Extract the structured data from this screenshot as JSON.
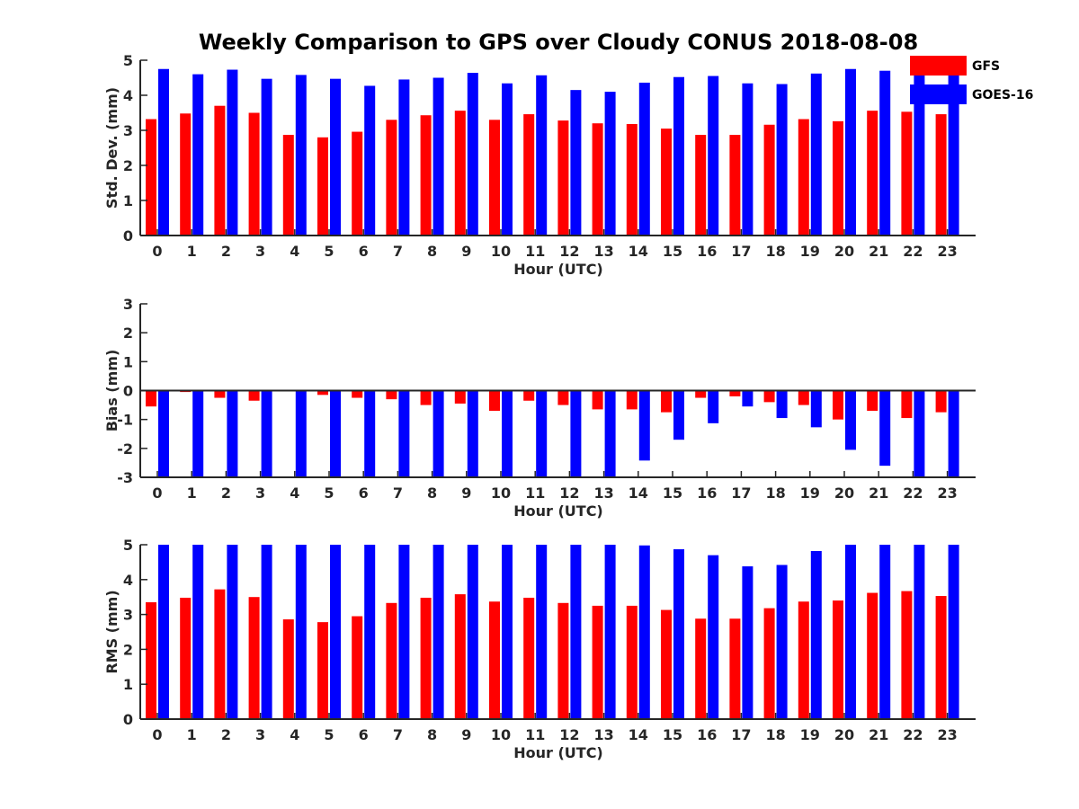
{
  "title": "Weekly Comparison to GPS over Cloudy CONUS 2018-08-08",
  "colors": {
    "GFS": "#ff0000",
    "GOES-16": "#0000ff",
    "axis": "#262626"
  },
  "legend": {
    "placement": "top-right",
    "entries": [
      "GFS",
      "GOES-16"
    ]
  },
  "chart_data": [
    {
      "type": "bar",
      "categories": [
        "0",
        "1",
        "2",
        "3",
        "4",
        "5",
        "6",
        "7",
        "8",
        "9",
        "10",
        "11",
        "12",
        "13",
        "14",
        "15",
        "16",
        "17",
        "18",
        "19",
        "20",
        "21",
        "22",
        "23"
      ],
      "xlabel": "Hour (UTC)",
      "ylabel": "Std. Dev. (mm)",
      "ylim": [
        0,
        5
      ],
      "yticks": [
        "0",
        "1",
        "2",
        "3",
        "4",
        "5"
      ],
      "series": [
        {
          "name": "GFS",
          "values": [
            3.32,
            3.48,
            3.7,
            3.5,
            2.87,
            2.8,
            2.96,
            3.3,
            3.43,
            3.56,
            3.3,
            3.46,
            3.28,
            3.2,
            3.18,
            3.05,
            2.87,
            2.87,
            3.16,
            3.32,
            3.26,
            3.56,
            3.53,
            3.46
          ]
        },
        {
          "name": "GOES-16",
          "values": [
            4.75,
            4.6,
            4.73,
            4.47,
            4.58,
            4.47,
            4.27,
            4.45,
            4.5,
            4.64,
            4.34,
            4.57,
            4.15,
            4.1,
            4.36,
            4.52,
            4.55,
            4.34,
            4.32,
            4.62,
            4.75,
            4.7,
            4.65,
            4.62
          ]
        }
      ]
    },
    {
      "type": "bar",
      "categories": [
        "0",
        "1",
        "2",
        "3",
        "4",
        "5",
        "6",
        "7",
        "8",
        "9",
        "10",
        "11",
        "12",
        "13",
        "14",
        "15",
        "16",
        "17",
        "18",
        "19",
        "20",
        "21",
        "22",
        "23"
      ],
      "xlabel": "Hour (UTC)",
      "ylabel": "Bias (mm)",
      "ylim": [
        -3,
        3
      ],
      "yticks": [
        "-3",
        "-2",
        "-1",
        "0",
        "1",
        "2",
        "3"
      ],
      "series": [
        {
          "name": "GFS",
          "values": [
            -0.55,
            -0.05,
            -0.25,
            -0.35,
            0.02,
            -0.15,
            -0.25,
            -0.3,
            -0.5,
            -0.45,
            -0.7,
            -0.35,
            -0.5,
            -0.65,
            -0.65,
            -0.75,
            -0.25,
            -0.2,
            -0.4,
            -0.5,
            -1.0,
            -0.7,
            -0.95,
            -0.75
          ]
        },
        {
          "name": "GOES-16",
          "values": [
            -3.0,
            -3.0,
            -3.0,
            -3.0,
            -3.0,
            -3.0,
            -3.0,
            -3.0,
            -3.0,
            -3.0,
            -3.0,
            -3.0,
            -3.0,
            -3.0,
            -2.42,
            -1.7,
            -1.13,
            -0.55,
            -0.95,
            -1.27,
            -2.05,
            -2.6,
            -3.0,
            -3.0
          ]
        }
      ]
    },
    {
      "type": "bar",
      "categories": [
        "0",
        "1",
        "2",
        "3",
        "4",
        "5",
        "6",
        "7",
        "8",
        "9",
        "10",
        "11",
        "12",
        "13",
        "14",
        "15",
        "16",
        "17",
        "18",
        "19",
        "20",
        "21",
        "22",
        "23"
      ],
      "xlabel": "Hour (UTC)",
      "ylabel": "RMS (mm)",
      "ylim": [
        0,
        5
      ],
      "yticks": [
        "0",
        "1",
        "2",
        "3",
        "4",
        "5"
      ],
      "series": [
        {
          "name": "GFS",
          "values": [
            3.35,
            3.48,
            3.72,
            3.5,
            2.86,
            2.78,
            2.95,
            3.33,
            3.48,
            3.58,
            3.37,
            3.48,
            3.33,
            3.25,
            3.25,
            3.13,
            2.88,
            2.88,
            3.18,
            3.37,
            3.4,
            3.62,
            3.67,
            3.53
          ]
        },
        {
          "name": "GOES-16",
          "values": [
            5,
            5,
            5,
            5,
            5,
            5,
            5,
            5,
            5,
            5,
            5,
            5,
            5,
            5,
            4.98,
            4.87,
            4.7,
            4.38,
            4.42,
            4.82,
            5,
            5,
            5,
            5
          ]
        }
      ]
    }
  ]
}
